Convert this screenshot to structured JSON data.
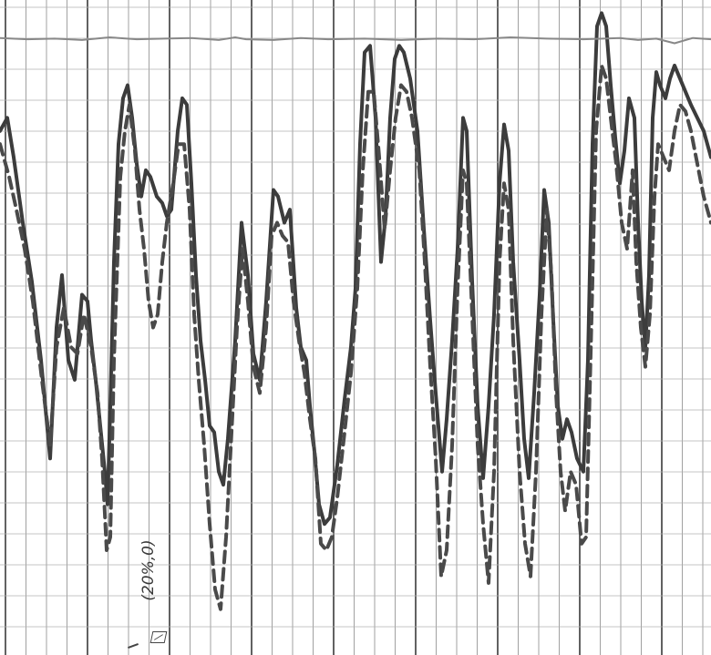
{
  "chart_data": {
    "type": "line",
    "title": "",
    "xlabel": "",
    "ylabel": "",
    "grid": true,
    "xlim": [
      0,
      780
    ],
    "ylim": [
      0,
      100
    ],
    "annotations": [
      {
        "text": "(20%,0)",
        "x": 145,
        "y": 13
      }
    ],
    "series": [
      {
        "name": "",
        "style": "solid",
        "color": "#3c3c3c",
        "points": [
          [
            0,
            80
          ],
          [
            8,
            82
          ],
          [
            15,
            76
          ],
          [
            25,
            66
          ],
          [
            35,
            57
          ],
          [
            45,
            45
          ],
          [
            55,
            30
          ],
          [
            62,
            50
          ],
          [
            68,
            58
          ],
          [
            75,
            45
          ],
          [
            82,
            42
          ],
          [
            90,
            55
          ],
          [
            96,
            54
          ],
          [
            100,
            48
          ],
          [
            105,
            42
          ],
          [
            110,
            35
          ],
          [
            115,
            28
          ],
          [
            118,
            23
          ],
          [
            121,
            38
          ],
          [
            125,
            60
          ],
          [
            130,
            78
          ],
          [
            135,
            85
          ],
          [
            140,
            87
          ],
          [
            145,
            82
          ],
          [
            150,
            75
          ],
          [
            155,
            70
          ],
          [
            160,
            74
          ],
          [
            165,
            73
          ],
          [
            172,
            70
          ],
          [
            178,
            69
          ],
          [
            183,
            67
          ],
          [
            188,
            68
          ],
          [
            195,
            80
          ],
          [
            200,
            85
          ],
          [
            205,
            84
          ],
          [
            210,
            72
          ],
          [
            215,
            58
          ],
          [
            220,
            48
          ],
          [
            225,
            42
          ],
          [
            230,
            35
          ],
          [
            235,
            34
          ],
          [
            240,
            28
          ],
          [
            245,
            26
          ],
          [
            250,
            33
          ],
          [
            258,
            48
          ],
          [
            265,
            66
          ],
          [
            272,
            58
          ],
          [
            278,
            46
          ],
          [
            285,
            42
          ],
          [
            292,
            54
          ],
          [
            300,
            71
          ],
          [
            305,
            70
          ],
          [
            312,
            66
          ],
          [
            318,
            68
          ],
          [
            325,
            53
          ],
          [
            330,
            47
          ],
          [
            336,
            45
          ],
          [
            340,
            38
          ],
          [
            345,
            31
          ],
          [
            350,
            23
          ],
          [
            356,
            20
          ],
          [
            362,
            21
          ],
          [
            370,
            29
          ],
          [
            378,
            39
          ],
          [
            385,
            47
          ],
          [
            390,
            56
          ],
          [
            395,
            78
          ],
          [
            400,
            92
          ],
          [
            406,
            93
          ],
          [
            412,
            82
          ],
          [
            418,
            60
          ],
          [
            423,
            67
          ],
          [
            428,
            82
          ],
          [
            433,
            91
          ],
          [
            438,
            93
          ],
          [
            443,
            92
          ],
          [
            450,
            88
          ],
          [
            458,
            80
          ],
          [
            465,
            65
          ],
          [
            472,
            51
          ],
          [
            478,
            40
          ],
          [
            485,
            28
          ],
          [
            490,
            36
          ],
          [
            496,
            48
          ],
          [
            502,
            62
          ],
          [
            508,
            82
          ],
          [
            512,
            80
          ],
          [
            518,
            57
          ],
          [
            524,
            38
          ],
          [
            530,
            27
          ],
          [
            536,
            38
          ],
          [
            542,
            52
          ],
          [
            548,
            72
          ],
          [
            553,
            81
          ],
          [
            558,
            77
          ],
          [
            563,
            60
          ],
          [
            570,
            45
          ],
          [
            575,
            33
          ],
          [
            580,
            27
          ],
          [
            586,
            40
          ],
          [
            592,
            55
          ],
          [
            597,
            71
          ],
          [
            602,
            66
          ],
          [
            607,
            51
          ],
          [
            612,
            38
          ],
          [
            617,
            33
          ],
          [
            622,
            36
          ],
          [
            627,
            34
          ],
          [
            633,
            30
          ],
          [
            640,
            28
          ],
          [
            645,
            45
          ],
          [
            650,
            78
          ],
          [
            655,
            96
          ],
          [
            660,
            98
          ],
          [
            665,
            96
          ],
          [
            670,
            87
          ],
          [
            675,
            79
          ],
          [
            680,
            72
          ],
          [
            685,
            77
          ],
          [
            690,
            85
          ],
          [
            696,
            82
          ],
          [
            700,
            66
          ],
          [
            704,
            54
          ],
          [
            708,
            47
          ],
          [
            712,
            58
          ],
          [
            716,
            82
          ],
          [
            720,
            89
          ],
          [
            724,
            87
          ],
          [
            730,
            85
          ],
          [
            735,
            88
          ],
          [
            740,
            90
          ],
          [
            746,
            88
          ],
          [
            752,
            86
          ],
          [
            758,
            84
          ],
          [
            765,
            82
          ],
          [
            772,
            80
          ],
          [
            780,
            76
          ]
        ]
      },
      {
        "name": "",
        "style": "dashed",
        "color": "#4a4a4a",
        "points": [
          [
            0,
            78
          ],
          [
            10,
            73
          ],
          [
            18,
            68
          ],
          [
            27,
            62
          ],
          [
            36,
            54
          ],
          [
            46,
            42
          ],
          [
            55,
            32
          ],
          [
            62,
            47
          ],
          [
            70,
            53
          ],
          [
            78,
            47
          ],
          [
            85,
            46
          ],
          [
            92,
            52
          ],
          [
            100,
            47
          ],
          [
            107,
            40
          ],
          [
            112,
            30
          ],
          [
            117,
            16
          ],
          [
            121,
            18
          ],
          [
            125,
            45
          ],
          [
            132,
            73
          ],
          [
            137,
            80
          ],
          [
            142,
            84
          ],
          [
            148,
            77
          ],
          [
            153,
            68
          ],
          [
            158,
            62
          ],
          [
            163,
            54
          ],
          [
            168,
            50
          ],
          [
            173,
            52
          ],
          [
            178,
            60
          ],
          [
            183,
            66
          ],
          [
            190,
            72
          ],
          [
            196,
            78
          ],
          [
            202,
            78
          ],
          [
            208,
            68
          ],
          [
            213,
            52
          ],
          [
            218,
            42
          ],
          [
            224,
            32
          ],
          [
            230,
            20
          ],
          [
            236,
            10
          ],
          [
            242,
            7
          ],
          [
            248,
            18
          ],
          [
            254,
            34
          ],
          [
            260,
            50
          ],
          [
            266,
            62
          ],
          [
            272,
            54
          ],
          [
            278,
            44
          ],
          [
            285,
            40
          ],
          [
            292,
            50
          ],
          [
            298,
            64
          ],
          [
            304,
            66
          ],
          [
            310,
            64
          ],
          [
            316,
            63
          ],
          [
            322,
            54
          ],
          [
            328,
            48
          ],
          [
            334,
            43
          ],
          [
            340,
            36
          ],
          [
            346,
            30
          ],
          [
            352,
            17
          ],
          [
            358,
            16
          ],
          [
            364,
            18
          ],
          [
            370,
            24
          ],
          [
            378,
            34
          ],
          [
            385,
            43
          ],
          [
            392,
            56
          ],
          [
            398,
            74
          ],
          [
            404,
            86
          ],
          [
            410,
            86
          ],
          [
            416,
            76
          ],
          [
            422,
            65
          ],
          [
            428,
            74
          ],
          [
            434,
            82
          ],
          [
            440,
            87
          ],
          [
            446,
            86
          ],
          [
            452,
            82
          ],
          [
            460,
            74
          ],
          [
            466,
            60
          ],
          [
            472,
            44
          ],
          [
            478,
            30
          ],
          [
            484,
            12
          ],
          [
            490,
            16
          ],
          [
            496,
            32
          ],
          [
            502,
            56
          ],
          [
            508,
            74
          ],
          [
            512,
            72
          ],
          [
            518,
            52
          ],
          [
            524,
            32
          ],
          [
            530,
            20
          ],
          [
            536,
            11
          ],
          [
            542,
            28
          ],
          [
            548,
            60
          ],
          [
            553,
            72
          ],
          [
            558,
            68
          ],
          [
            563,
            48
          ],
          [
            570,
            28
          ],
          [
            576,
            17
          ],
          [
            582,
            12
          ],
          [
            588,
            28
          ],
          [
            594,
            52
          ],
          [
            600,
            68
          ],
          [
            605,
            58
          ],
          [
            610,
            40
          ],
          [
            615,
            28
          ],
          [
            620,
            22
          ],
          [
            626,
            28
          ],
          [
            632,
            26
          ],
          [
            638,
            17
          ],
          [
            643,
            18
          ],
          [
            648,
            46
          ],
          [
            654,
            80
          ],
          [
            660,
            90
          ],
          [
            665,
            88
          ],
          [
            670,
            82
          ],
          [
            676,
            75
          ],
          [
            682,
            66
          ],
          [
            688,
            62
          ],
          [
            694,
            74
          ],
          [
            698,
            60
          ],
          [
            703,
            50
          ],
          [
            708,
            44
          ],
          [
            713,
            52
          ],
          [
            718,
            70
          ],
          [
            722,
            78
          ],
          [
            728,
            76
          ],
          [
            734,
            74
          ],
          [
            740,
            80
          ],
          [
            746,
            84
          ],
          [
            752,
            83
          ],
          [
            758,
            80
          ],
          [
            765,
            75
          ],
          [
            772,
            70
          ],
          [
            780,
            66
          ]
        ]
      },
      {
        "name": "",
        "style": "solid",
        "color": "#888888",
        "points": [
          [
            0,
            94.2
          ],
          [
            30,
            94
          ],
          [
            60,
            94.1
          ],
          [
            90,
            93.9
          ],
          [
            120,
            94.3
          ],
          [
            150,
            94
          ],
          [
            180,
            94.1
          ],
          [
            210,
            94.2
          ],
          [
            240,
            93.9
          ],
          [
            258,
            94.3
          ],
          [
            270,
            94
          ],
          [
            300,
            93.9
          ],
          [
            330,
            94.2
          ],
          [
            360,
            94
          ],
          [
            400,
            94.1
          ],
          [
            440,
            93.9
          ],
          [
            480,
            94.1
          ],
          [
            520,
            94
          ],
          [
            560,
            94.3
          ],
          [
            600,
            94.1
          ],
          [
            640,
            94
          ],
          [
            680,
            94.2
          ],
          [
            700,
            93.9
          ],
          [
            720,
            94.1
          ],
          [
            740,
            93.4
          ],
          [
            760,
            94.2
          ],
          [
            780,
            94
          ]
        ]
      }
    ]
  }
}
